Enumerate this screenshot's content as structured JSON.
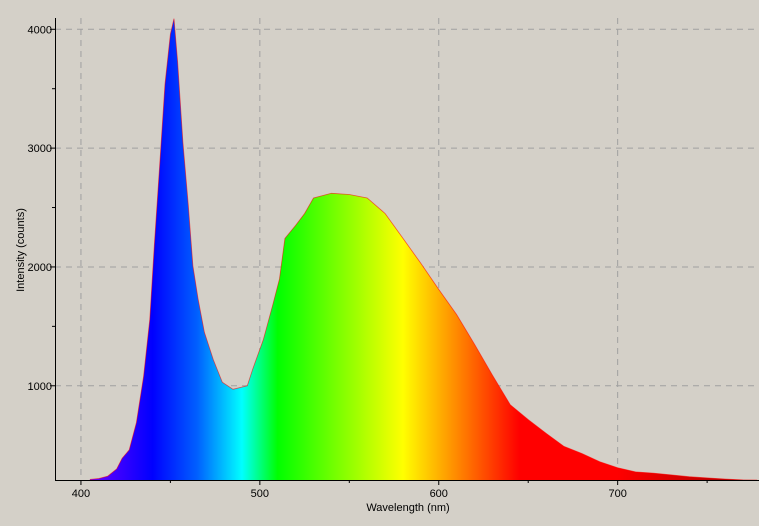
{
  "chart_data": {
    "type": "area",
    "title": "",
    "xlabel": "Wavelength (nm)",
    "ylabel": "Intensity (counts)",
    "xlim": [
      385.5,
      779
    ],
    "ylim": [
      207,
      4095
    ],
    "x_ticks": [
      400,
      500,
      600,
      700
    ],
    "x_minor_ticks": [
      450,
      550,
      650,
      750
    ],
    "y_ticks": [
      1000,
      2000,
      3000,
      4000
    ],
    "y_minor_ticks": [
      1500,
      2500,
      3500
    ],
    "grid": true,
    "grid_style": "dashed",
    "background_color": "#d4d0c8",
    "grid_color": "#a0a0a0",
    "outline_color": "#ff0000",
    "fill": "visible spectrum colour by wavelength",
    "spectrum_colors": [
      {
        "nm": 400,
        "color": "#7a00ff"
      },
      {
        "nm": 440,
        "color": "#0000ff"
      },
      {
        "nm": 465,
        "color": "#0060ff"
      },
      {
        "nm": 490,
        "color": "#00ffff"
      },
      {
        "nm": 510,
        "color": "#00ff00"
      },
      {
        "nm": 580,
        "color": "#ffff00"
      },
      {
        "nm": 645,
        "color": "#ff0000"
      },
      {
        "nm": 700,
        "color": "#ff0000"
      },
      {
        "nm": 780,
        "color": "#a00000"
      }
    ],
    "series": [
      {
        "x": [
          405,
          410,
          415,
          420,
          423,
          427,
          431,
          435,
          438.5,
          441,
          444,
          447,
          450,
          452,
          454,
          457,
          460,
          462.6,
          465.5,
          469,
          474,
          479,
          485,
          493,
          496,
          502,
          507,
          511,
          514,
          520,
          525,
          530,
          540,
          550,
          560,
          570,
          580,
          590,
          600,
          610,
          620,
          630,
          640,
          650,
          660,
          670,
          680,
          690,
          700,
          710,
          720,
          730,
          740,
          750,
          760,
          770,
          778
        ],
        "y": [
          212,
          220,
          240,
          300,
          390,
          460,
          690,
          1080,
          1560,
          2180,
          2860,
          3540,
          3960,
          4090,
          3730,
          3050,
          2520,
          2010,
          1730,
          1450,
          1220,
          1030,
          970,
          1000,
          1140,
          1390,
          1670,
          1900,
          2240,
          2350,
          2450,
          2580,
          2620,
          2610,
          2580,
          2450,
          2240,
          2030,
          1810,
          1600,
          1350,
          1090,
          840,
          715,
          600,
          490,
          430,
          360,
          310,
          275,
          265,
          250,
          235,
          225,
          215,
          208,
          207
        ]
      }
    ]
  }
}
